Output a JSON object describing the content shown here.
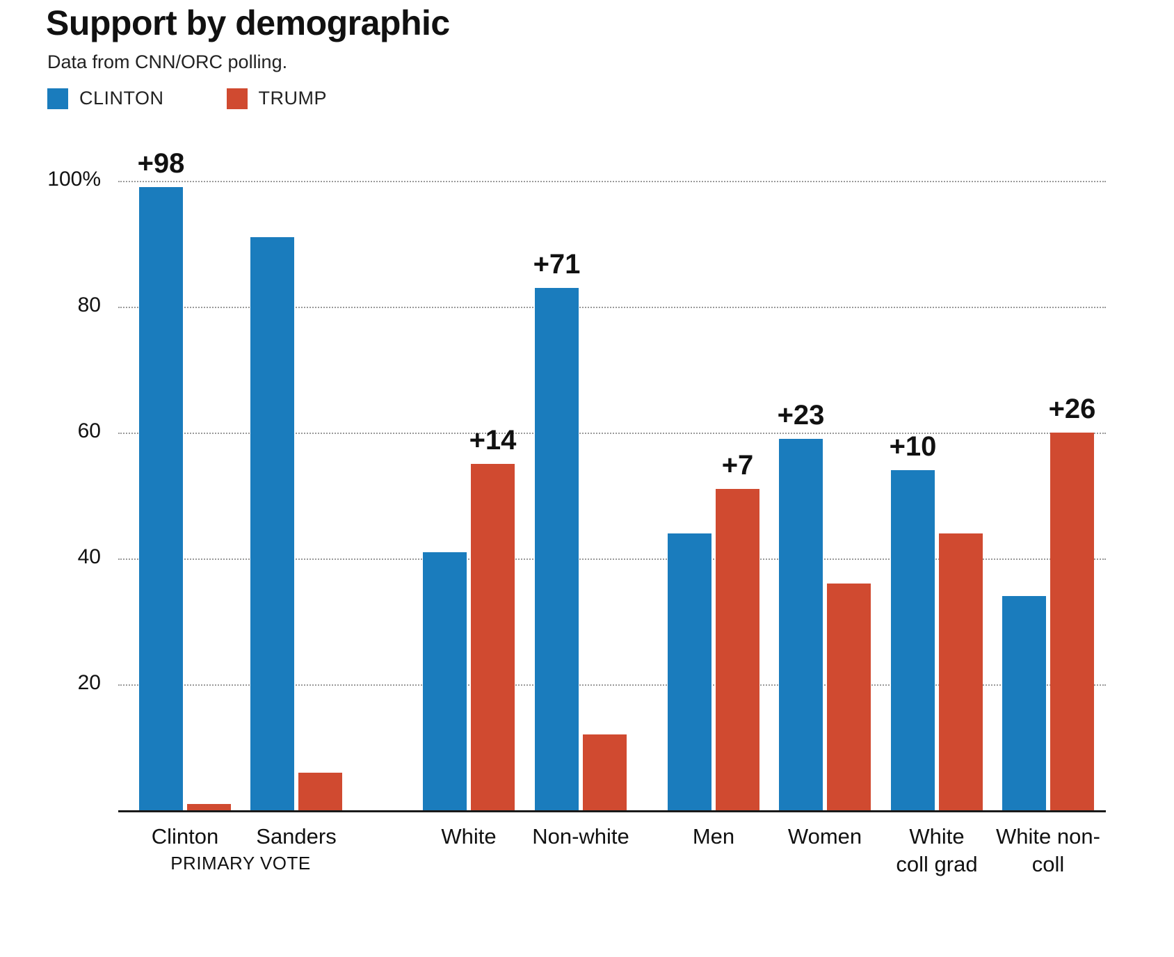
{
  "header": {
    "title": "Support by demographic",
    "subtitle": "Data from CNN/ORC polling."
  },
  "chart_data": {
    "type": "bar",
    "title": "Support by demographic",
    "subtitle": "Data from CNN/ORC polling.",
    "legend": [
      {
        "name": "CLINTON",
        "color": "#1a7cbd"
      },
      {
        "name": "TRUMP",
        "color": "#d04a30"
      }
    ],
    "ylim": [
      0,
      100
    ],
    "yticks": [
      {
        "value": 100,
        "label": "100%"
      },
      {
        "value": 80,
        "label": "80"
      },
      {
        "value": 60,
        "label": "60"
      },
      {
        "value": 40,
        "label": "40"
      },
      {
        "value": 20,
        "label": "20"
      }
    ],
    "grid": "horizontal dotted",
    "legend_position": "top-left",
    "categories": [
      "Clinton",
      "Sanders",
      "White",
      "Non-white",
      "Men",
      "Women",
      "White coll grad",
      "White non-coll"
    ],
    "series": [
      {
        "name": "CLINTON",
        "color": "#1a7cbd",
        "values": [
          99,
          91,
          41,
          83,
          44,
          59,
          54,
          34
        ]
      },
      {
        "name": "TRUMP",
        "color": "#d04a30",
        "values": [
          1,
          6,
          55,
          12,
          51,
          36,
          44,
          60
        ]
      }
    ],
    "groups": [
      {
        "slug": "clinton-primary",
        "category_lines": [
          "Clinton"
        ],
        "clinton": 99,
        "trump": 1,
        "diff_label": "+98",
        "diff_over": "CLINTON"
      },
      {
        "slug": "sanders-primary",
        "category_lines": [
          "Sanders"
        ],
        "clinton": 91,
        "trump": 6,
        "diff_label": "",
        "diff_over": ""
      },
      {
        "slug": "white",
        "category_lines": [
          "White"
        ],
        "clinton": 41,
        "trump": 55,
        "diff_label": "+14",
        "diff_over": "TRUMP"
      },
      {
        "slug": "non-white",
        "category_lines": [
          "Non-white"
        ],
        "clinton": 83,
        "trump": 12,
        "diff_label": "+71",
        "diff_over": "CLINTON"
      },
      {
        "slug": "men",
        "category_lines": [
          "Men"
        ],
        "clinton": 44,
        "trump": 51,
        "diff_label": "+7",
        "diff_over": "TRUMP"
      },
      {
        "slug": "women",
        "category_lines": [
          "Women"
        ],
        "clinton": 59,
        "trump": 36,
        "diff_label": "+23",
        "diff_over": "CLINTON"
      },
      {
        "slug": "white-coll-grad",
        "category_lines": [
          "White",
          "coll grad"
        ],
        "clinton": 54,
        "trump": 44,
        "diff_label": "+10",
        "diff_over": "CLINTON"
      },
      {
        "slug": "white-non-coll",
        "category_lines": [
          "White non-",
          "coll"
        ],
        "clinton": 34,
        "trump": 60,
        "diff_label": "+26",
        "diff_over": "TRUMP"
      }
    ],
    "x_axis_section_label": "PRIMARY VOTE"
  }
}
